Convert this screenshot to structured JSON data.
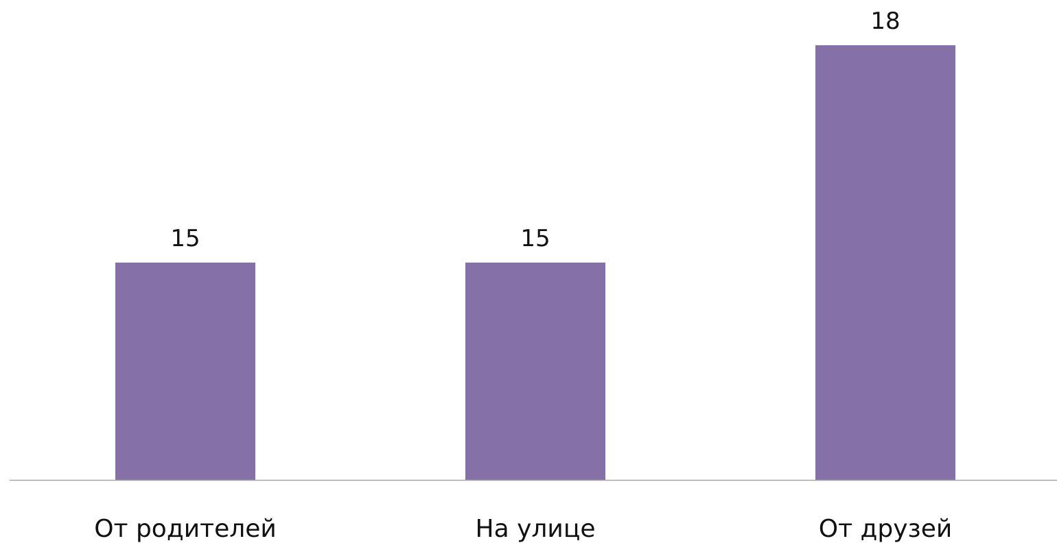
{
  "chart_data": {
    "type": "bar",
    "categories": [
      "От родителей",
      "На улице",
      "От друзей"
    ],
    "values": [
      15,
      15,
      18
    ],
    "title": "",
    "xlabel": "",
    "ylabel": "",
    "ylim": [
      12,
      18
    ],
    "grid": false,
    "legend": "none",
    "colors": {
      "bar": "#8571A8",
      "axis": "#A6A6A6",
      "text": "#111111"
    }
  }
}
